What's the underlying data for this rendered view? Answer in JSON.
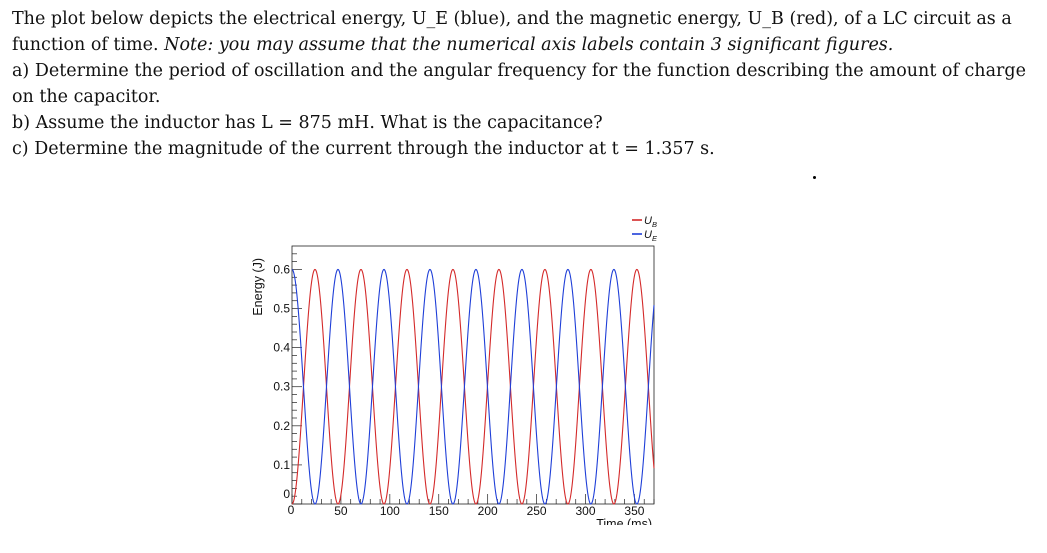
{
  "problem": {
    "intro": "The plot below depicts the electrical energy, U_E (blue), and the magnetic energy, U_B (red), of a LC circuit as a function of time.",
    "note": "Note: you may assume that the numerical axis labels contain 3 significant figures.",
    "part_a": "a) Determine the period of oscillation and the angular frequency for the function describing the amount of charge on the capacitor.",
    "part_b": "b) Assume the inductor has L = 875 mH. What is the capacitance?",
    "part_c": "c) Determine the magnitude of the current through the inductor at t = 1.357 s."
  },
  "colors": {
    "ue": "#1f3fd8",
    "ub": "#d42a2a",
    "axis": "#222222"
  },
  "chart_data": {
    "type": "line",
    "title": "",
    "xlabel": "Time (ms)",
    "ylabel": "Energy (J)",
    "xlim": [
      0,
      370
    ],
    "ylim": [
      0,
      0.66
    ],
    "xticks": [
      0,
      50,
      100,
      150,
      200,
      250,
      300,
      350
    ],
    "yticks": [
      0,
      0.1,
      0.2,
      0.3,
      0.4,
      0.5,
      0.6
    ],
    "xtick_labels": [
      "0",
      "50",
      "100",
      "150",
      "200",
      "250",
      "300",
      "350"
    ],
    "ytick_labels": [
      "0",
      "0.1",
      "0.2",
      "0.3",
      "0.4",
      "0.5",
      "0.6"
    ],
    "legend_position": "top-right",
    "series": [
      {
        "name": "U_B",
        "color": "#d42a2a",
        "function": "Umax*sin^2(pi*t/T_half)",
        "Umax": 0.6,
        "T_half_ms": 47,
        "t_range": [
          0,
          370
        ]
      },
      {
        "name": "U_E",
        "color": "#1f3fd8",
        "function": "Umax*cos^2(pi*t/T_half)",
        "Umax": 0.6,
        "T_half_ms": 47,
        "t_range": [
          0,
          370
        ]
      }
    ]
  }
}
